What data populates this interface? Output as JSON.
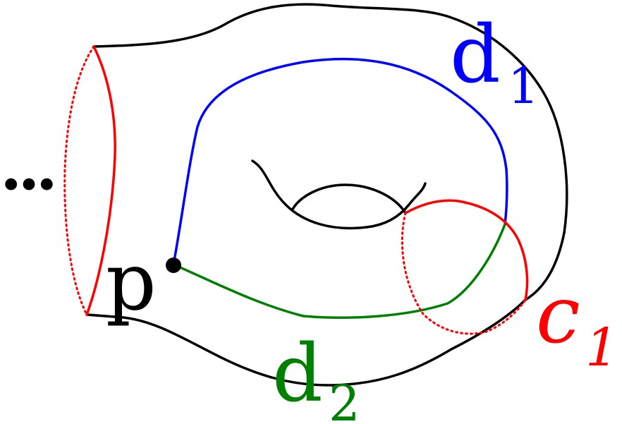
{
  "labels": {
    "ellipsis": "...",
    "point": "p",
    "d1_main": "d",
    "d1_sub": "1",
    "d2_main": "d",
    "d2_sub": "2",
    "c1_main": "c",
    "c1_sub": "1"
  },
  "colors": {
    "surface": "#000000",
    "boundary": "#ff0000",
    "d1": "#0000ff",
    "d2": "#008000",
    "c1": "#ff0000",
    "point": "#000000"
  }
}
